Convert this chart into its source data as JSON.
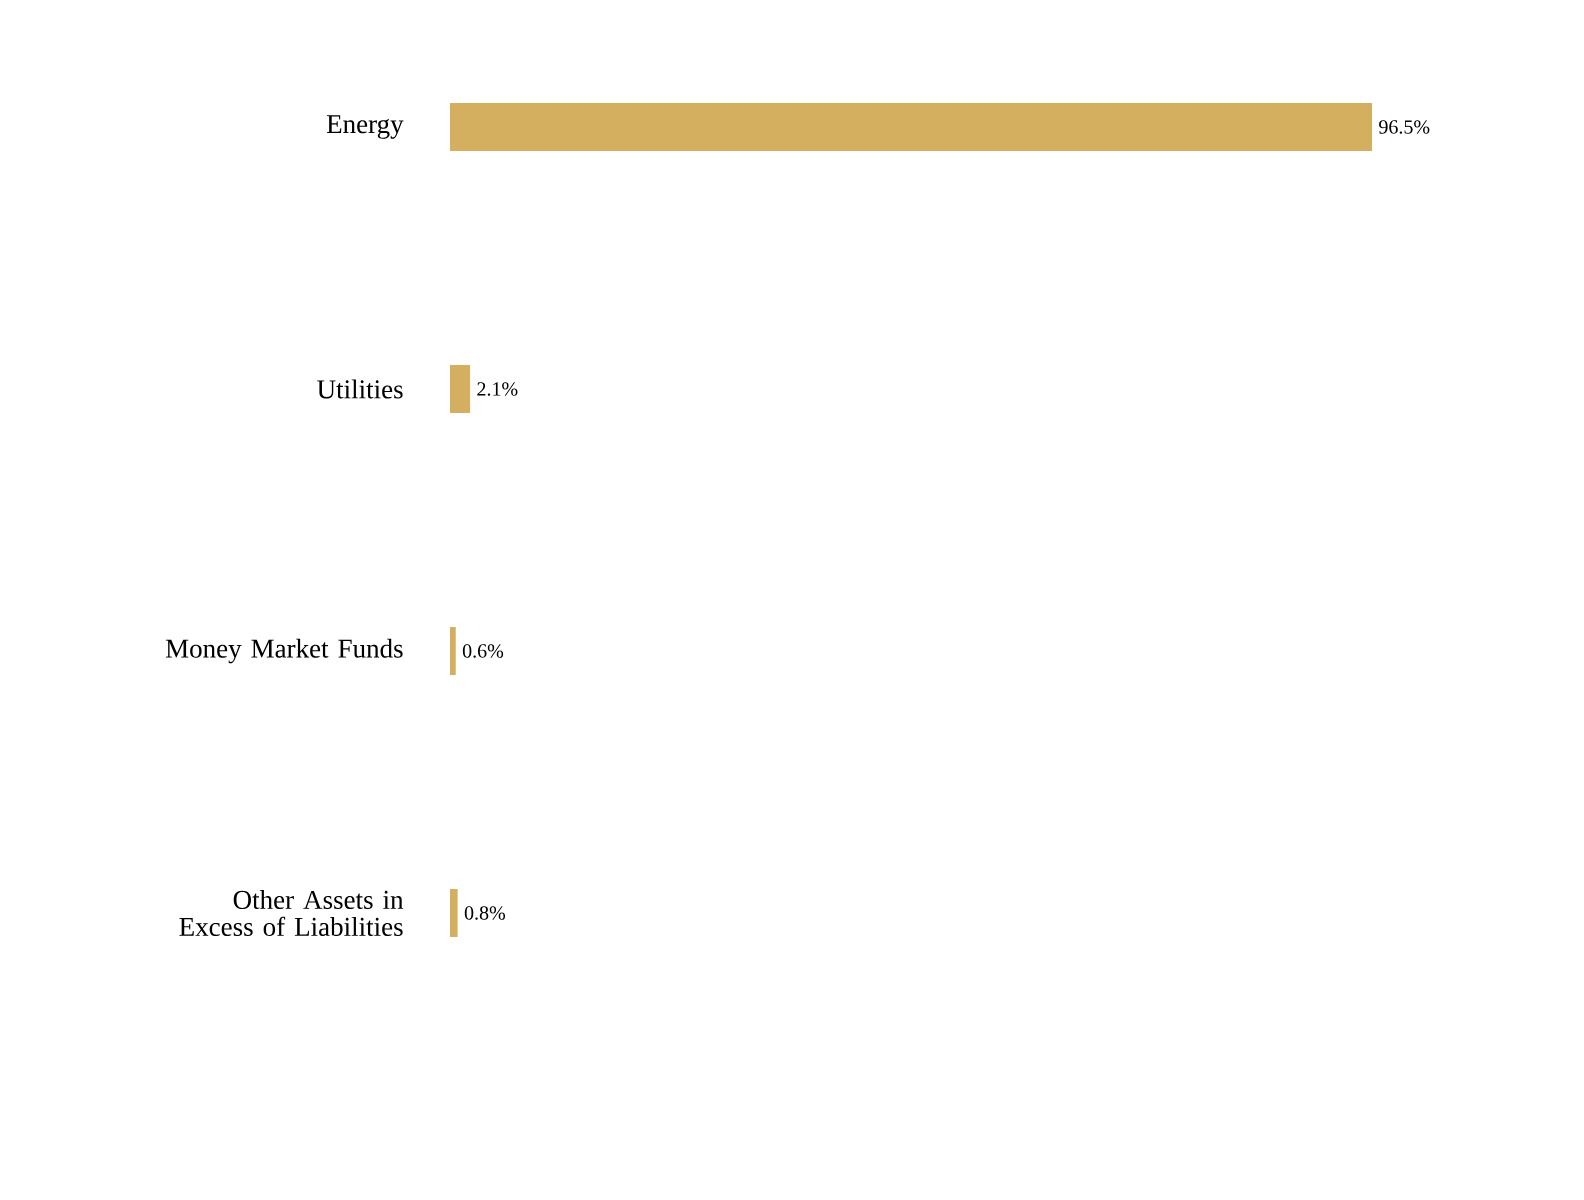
{
  "chart_data": {
    "type": "bar",
    "orientation": "horizontal",
    "categories": [
      "Energy",
      "Utilities",
      "Money Market Funds",
      "Other Assets in Excess of Liabilities"
    ],
    "values": [
      96.5,
      2.1,
      0.6,
      0.8
    ],
    "value_labels": [
      "96.5%",
      "2.1%",
      "0.6%",
      "0.8%"
    ],
    "color": "#d4af5f"
  }
}
